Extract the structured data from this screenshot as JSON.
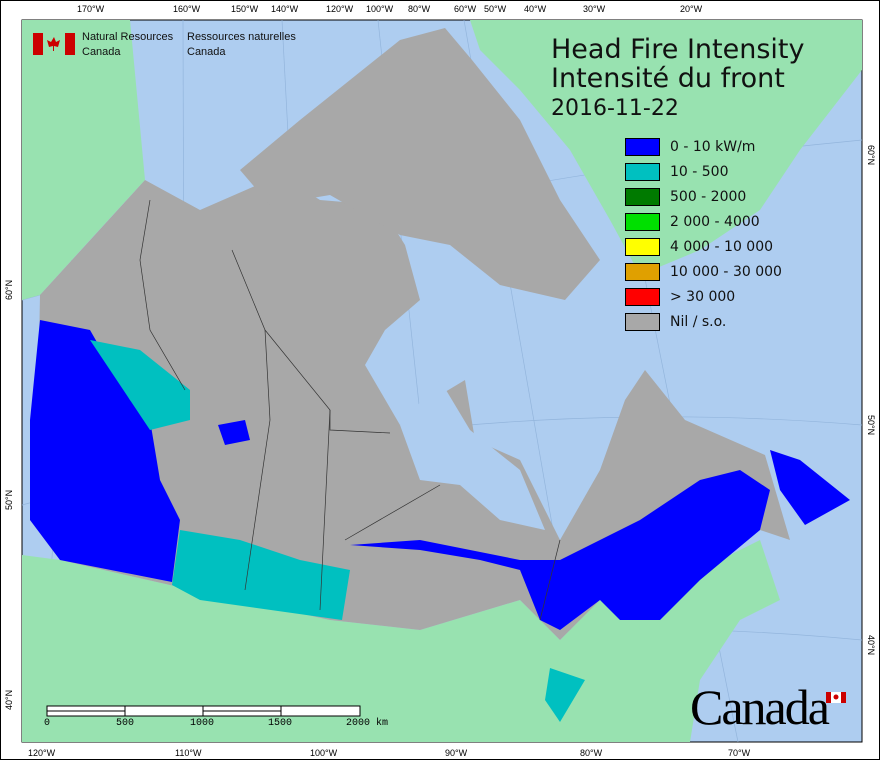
{
  "title_en": "Head Fire Intensity",
  "title_fr": "Intensité du front",
  "date": "2016-11-22",
  "legend": [
    {
      "label": "0 - 10 kW/m",
      "color": "#0000ff"
    },
    {
      "label": "10 - 500",
      "color": "#00c0c0"
    },
    {
      "label": "500 - 2000",
      "color": "#007a00"
    },
    {
      "label": "2 000 - 4000",
      "color": "#00e000"
    },
    {
      "label": "4 000 - 10 000",
      "color": "#ffff00"
    },
    {
      "label": "10 000 - 30 000",
      "color": "#e0a000"
    },
    {
      "label": "> 30 000",
      "color": "#ff0000"
    },
    {
      "label": "Nil / s.o.",
      "color": "#a8a8a8"
    }
  ],
  "agency": {
    "en_line1": "Natural Resources",
    "en_line2": "Canada",
    "fr_line1": "Ressources naturelles",
    "fr_line2": "Canada"
  },
  "wordmark": "Canada",
  "axes": {
    "top": [
      "170°W",
      "160°W",
      "150°W",
      "140°W",
      "120°W",
      "100°W",
      "80°W",
      "60°W",
      "50°W",
      "40°W",
      "30°W",
      "20°W"
    ],
    "bottom": [
      "120°W",
      "110°W",
      "100°W",
      "90°W",
      "80°W",
      "70°W"
    ],
    "left": [
      "60°N",
      "50°N",
      "40°N"
    ],
    "right": [
      "60°N",
      "50°N",
      "40°N"
    ]
  },
  "scale_bar": {
    "labels": [
      "0",
      "500",
      "1000",
      "1500",
      "2000 km"
    ]
  },
  "colors": {
    "ocean": "#aecdf0",
    "foreign_land": "#98e2b0",
    "no_data": "#a8a8a8"
  }
}
